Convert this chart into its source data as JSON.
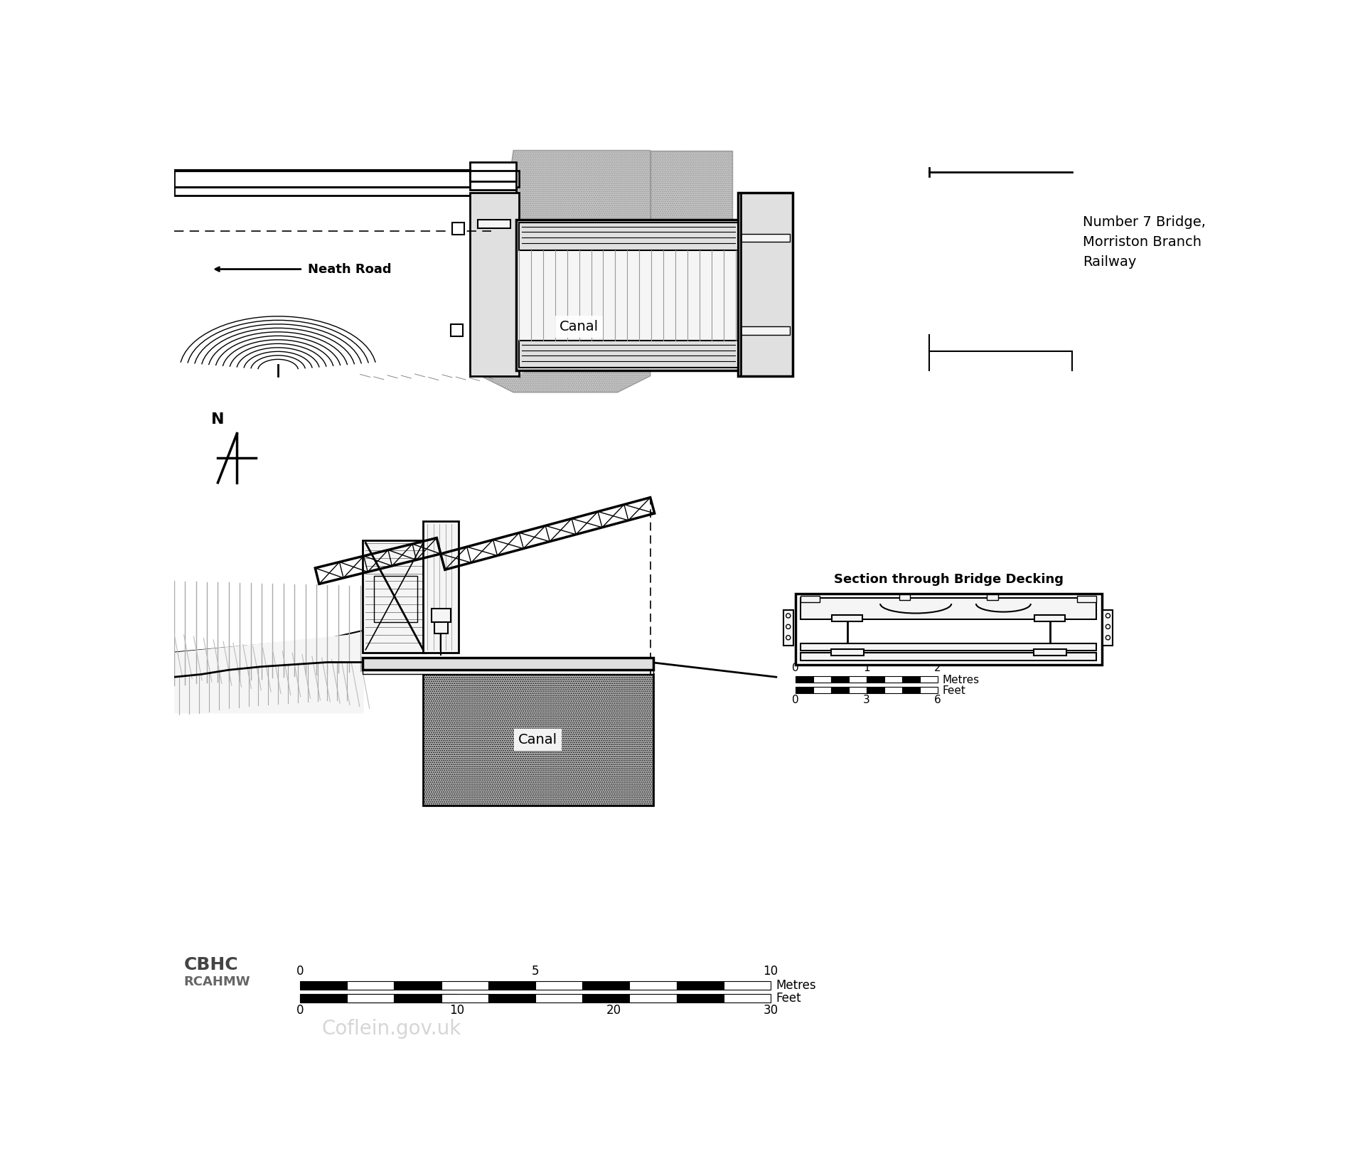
{
  "bg": "#ffffff",
  "top_label": "Number 7 Bridge,\nMorriston Branch\nRailway",
  "neath_road_label": "Neath Road",
  "canal_label_plan": "Canal",
  "canal_label_elev": "Canal",
  "section_label": "Section through Bridge Decking",
  "north_label": "N",
  "stipple_color": "#c8c8c8",
  "stipple_edge": "#999999",
  "line_color": "#000000",
  "light_fill": "#f5f5f5",
  "med_fill": "#e0e0e0"
}
